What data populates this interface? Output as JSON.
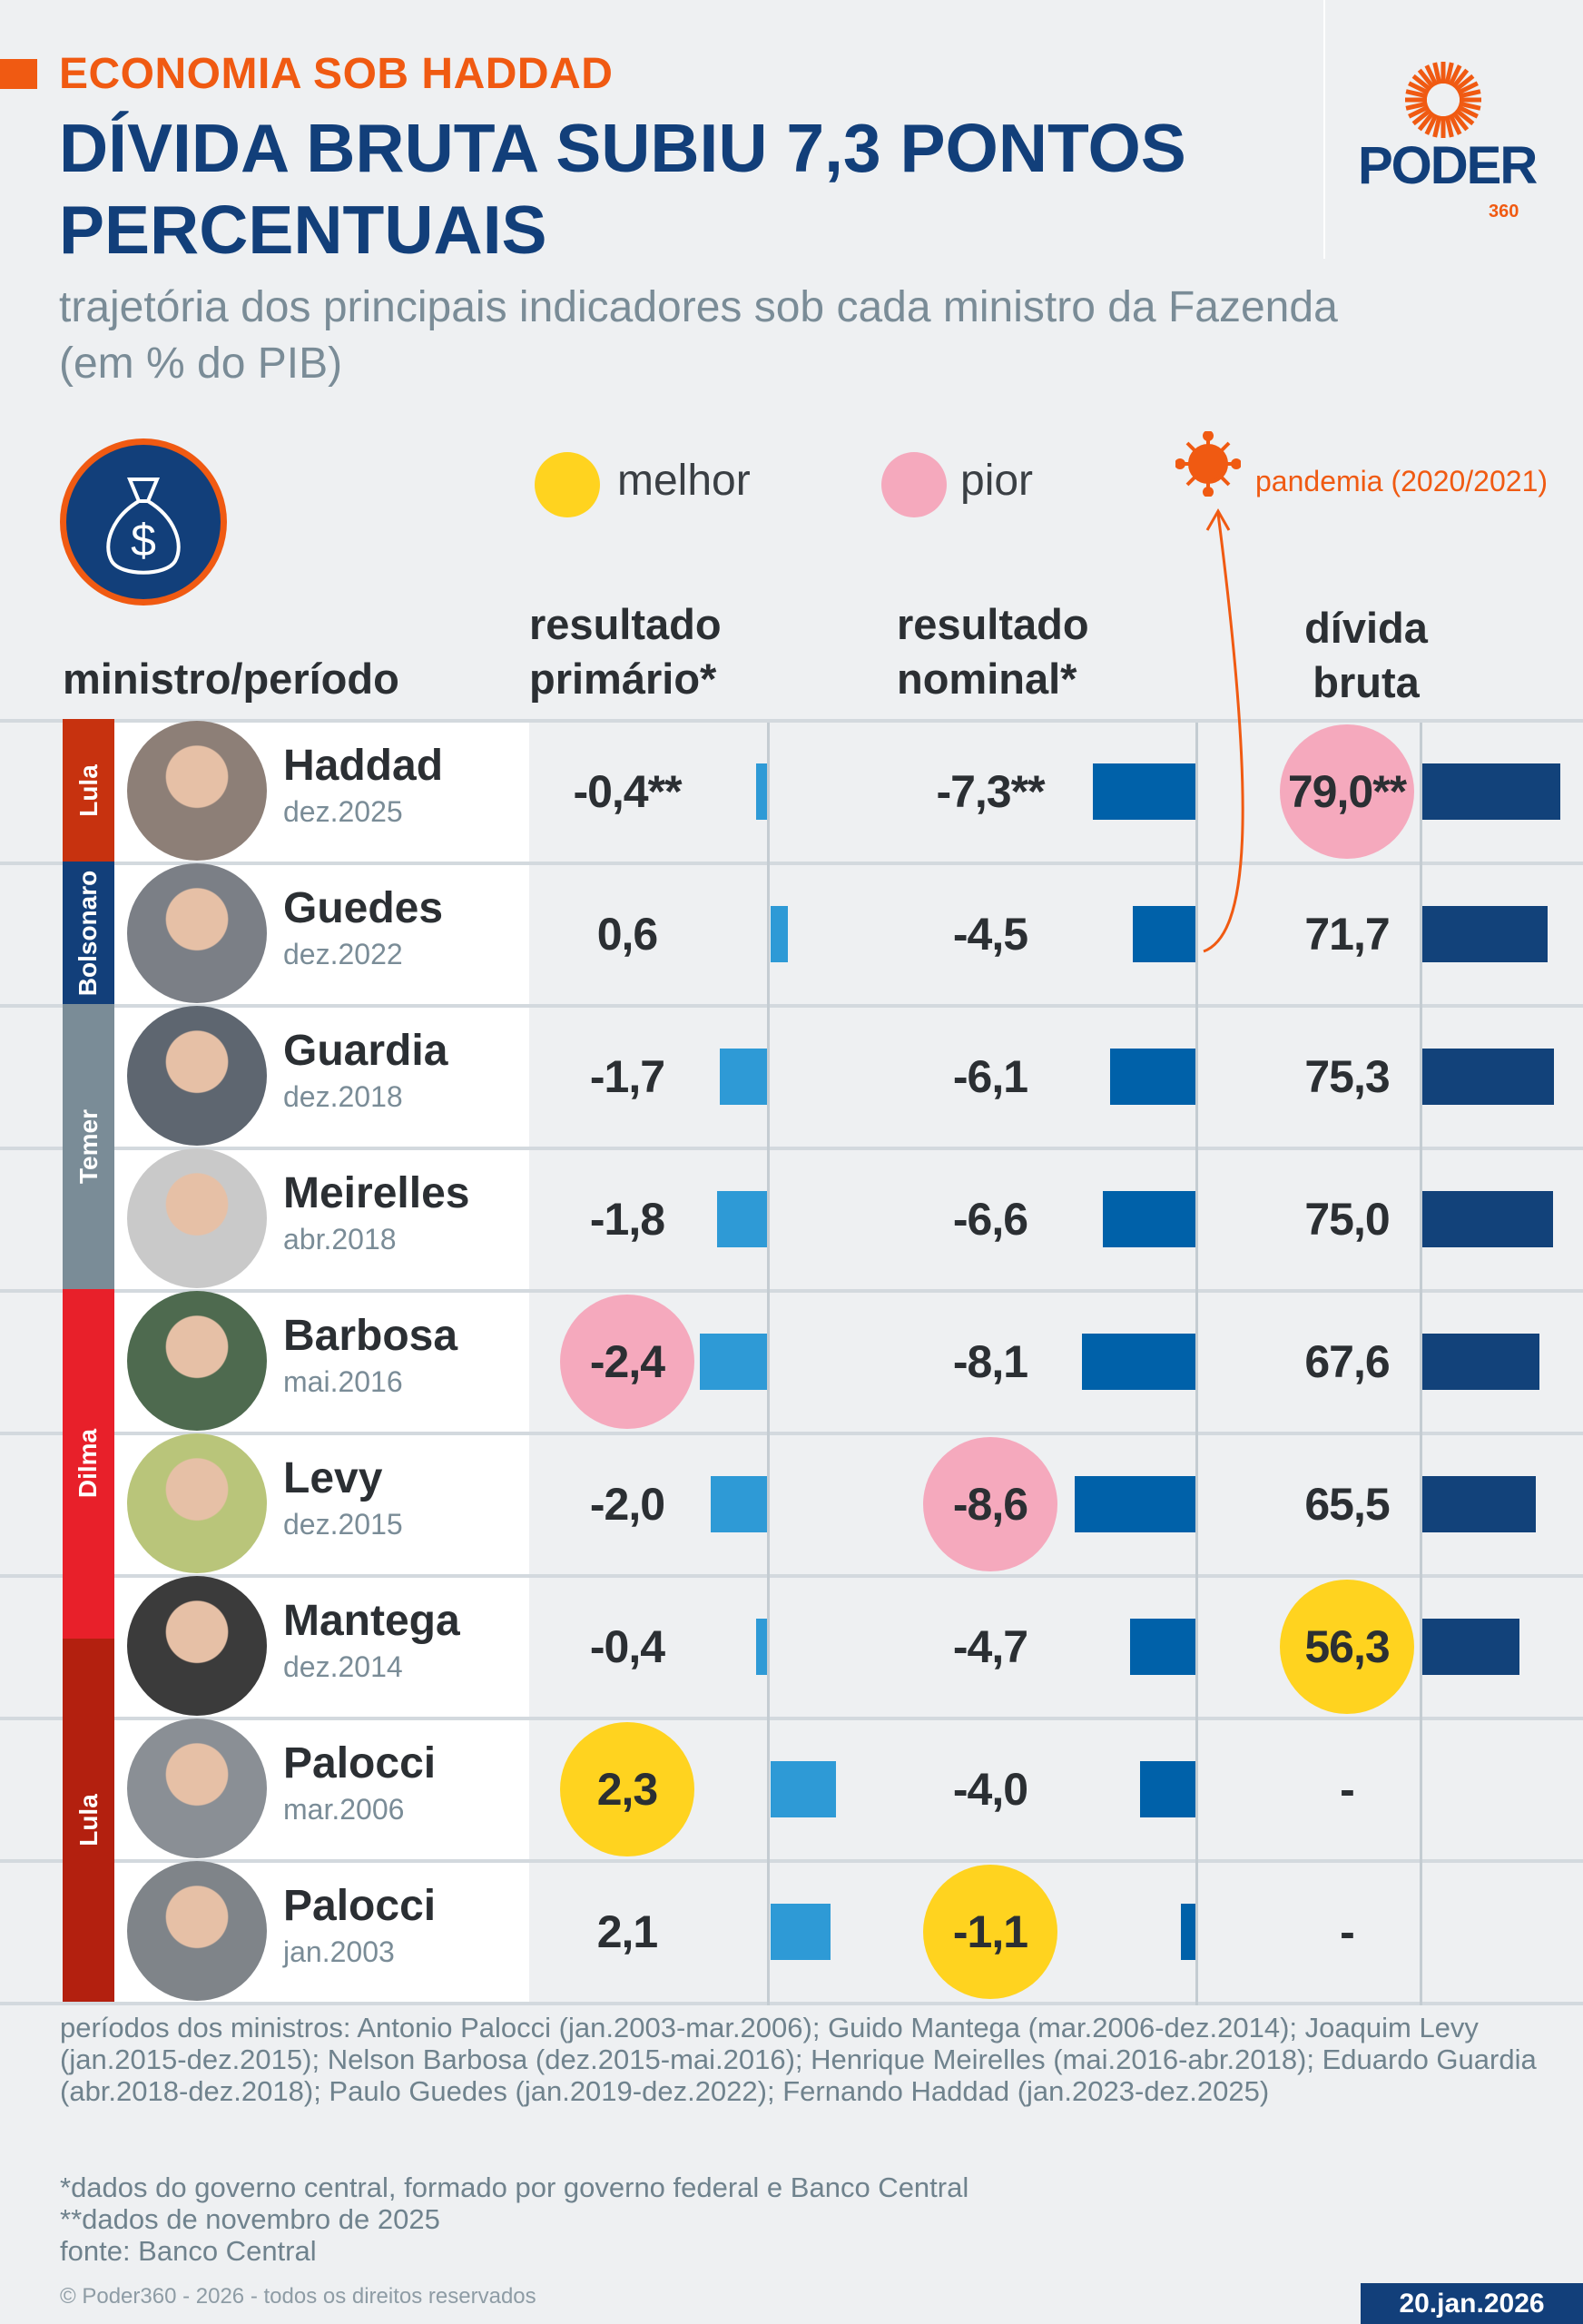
{
  "header": {
    "kicker": "ECONOMIA SOB HADDAD",
    "title": "DÍVIDA BRUTA SUBIU 7,3 PONTOS PERCENTUAIS",
    "subtitle": "trajetória dos principais indicadores sob cada ministro da Fazenda (em % do PIB)"
  },
  "logo": {
    "brand": "PODER",
    "sub": "360"
  },
  "legend": {
    "better": {
      "label": "melhor",
      "color": "#ffd31f"
    },
    "worse": {
      "label": "pior",
      "color": "#f5a9bd"
    },
    "pandemic": {
      "label": "pandemia (2020/2021)",
      "color": "#f05a12",
      "icon": "virus-icon"
    }
  },
  "colors": {
    "primary_bar": "#2e9ad6",
    "nominal_bar": "#0061a9",
    "debt_bar": "#12427a"
  },
  "chart_data": {
    "type": "table",
    "columns": [
      "ministro/período",
      "resultado primário*",
      "resultado nominal*",
      "dívida bruta"
    ],
    "parties": [
      {
        "label": "Lula",
        "color": "#c7320f",
        "rows": [
          0
        ]
      },
      {
        "label": "Bolsonaro",
        "color": "#123f7a",
        "rows": [
          1
        ]
      },
      {
        "label": "Temer",
        "color": "#7a8c97",
        "rows": [
          2,
          3
        ]
      },
      {
        "label": "Dilma",
        "color": "#e8202a",
        "rows": [
          4,
          5,
          6
        ]
      },
      {
        "label": "Lula",
        "color": "#b3200f",
        "rows": [
          6,
          7,
          8
        ]
      }
    ],
    "rows": [
      {
        "name": "Haddad",
        "date": "dez.2025",
        "primary": -0.4,
        "primary_label": "-0,4**",
        "nominal": -7.3,
        "nominal_label": "-7,3**",
        "debt": 79.0,
        "debt_label": "79,0**",
        "highlight": {
          "debt": "worse"
        }
      },
      {
        "name": "Guedes",
        "date": "dez.2022",
        "primary": 0.6,
        "primary_label": "0,6",
        "nominal": -4.5,
        "nominal_label": "-4,5",
        "debt": 71.7,
        "debt_label": "71,7",
        "highlight": {}
      },
      {
        "name": "Guardia",
        "date": "dez.2018",
        "primary": -1.7,
        "primary_label": "-1,7",
        "nominal": -6.1,
        "nominal_label": "-6,1",
        "debt": 75.3,
        "debt_label": "75,3",
        "highlight": {}
      },
      {
        "name": "Meirelles",
        "date": "abr.2018",
        "primary": -1.8,
        "primary_label": "-1,8",
        "nominal": -6.6,
        "nominal_label": "-6,6",
        "debt": 75.0,
        "debt_label": "75,0",
        "highlight": {}
      },
      {
        "name": "Barbosa",
        "date": "mai.2016",
        "primary": -2.4,
        "primary_label": "-2,4",
        "nominal": -8.1,
        "nominal_label": "-8,1",
        "debt": 67.6,
        "debt_label": "67,6",
        "highlight": {
          "primary": "worse"
        }
      },
      {
        "name": "Levy",
        "date": "dez.2015",
        "primary": -2.0,
        "primary_label": "-2,0",
        "nominal": -8.6,
        "nominal_label": "-8,6",
        "debt": 65.5,
        "debt_label": "65,5",
        "highlight": {
          "nominal": "worse"
        }
      },
      {
        "name": "Mantega",
        "date": "dez.2014",
        "primary": -0.4,
        "primary_label": "-0,4",
        "nominal": -4.7,
        "nominal_label": "-4,7",
        "debt": 56.3,
        "debt_label": "56,3",
        "highlight": {
          "debt": "better"
        }
      },
      {
        "name": "Palocci",
        "date": "mar.2006",
        "primary": 2.3,
        "primary_label": "2,3",
        "nominal": -4.0,
        "nominal_label": "-4,0",
        "debt": null,
        "debt_label": "-",
        "highlight": {
          "primary": "better"
        }
      },
      {
        "name": "Palocci",
        "date": "jan.2003",
        "primary": 2.1,
        "primary_label": "2,1",
        "nominal": -1.1,
        "nominal_label": "-1,1",
        "debt": null,
        "debt_label": "-",
        "highlight": {
          "nominal": "better"
        }
      }
    ],
    "pandemic_marker_row": 1
  },
  "footer": {
    "periods": "períodos dos ministros: Antonio Palocci (jan.2003-mar.2006); Guido Mantega (mar.2006-dez.2014); Joaquim Levy (jan.2015-dez.2015); Nelson Barbosa (dez.2015-mai.2016); Henrique Meirelles (mai.2016-abr.2018); Eduardo Guardia (abr.2018-dez.2018); Paulo Guedes (jan.2019-dez.2022); Fernando Haddad (jan.2023-dez.2025)",
    "note1": "*dados do governo central, formado por governo federal e Banco Central",
    "note2": "**dados de novembro de 2025",
    "source": "fonte: Banco Central",
    "copyright": "© Poder360 - 2026 - todos os direitos reservados",
    "date": "20.jan.2026"
  }
}
